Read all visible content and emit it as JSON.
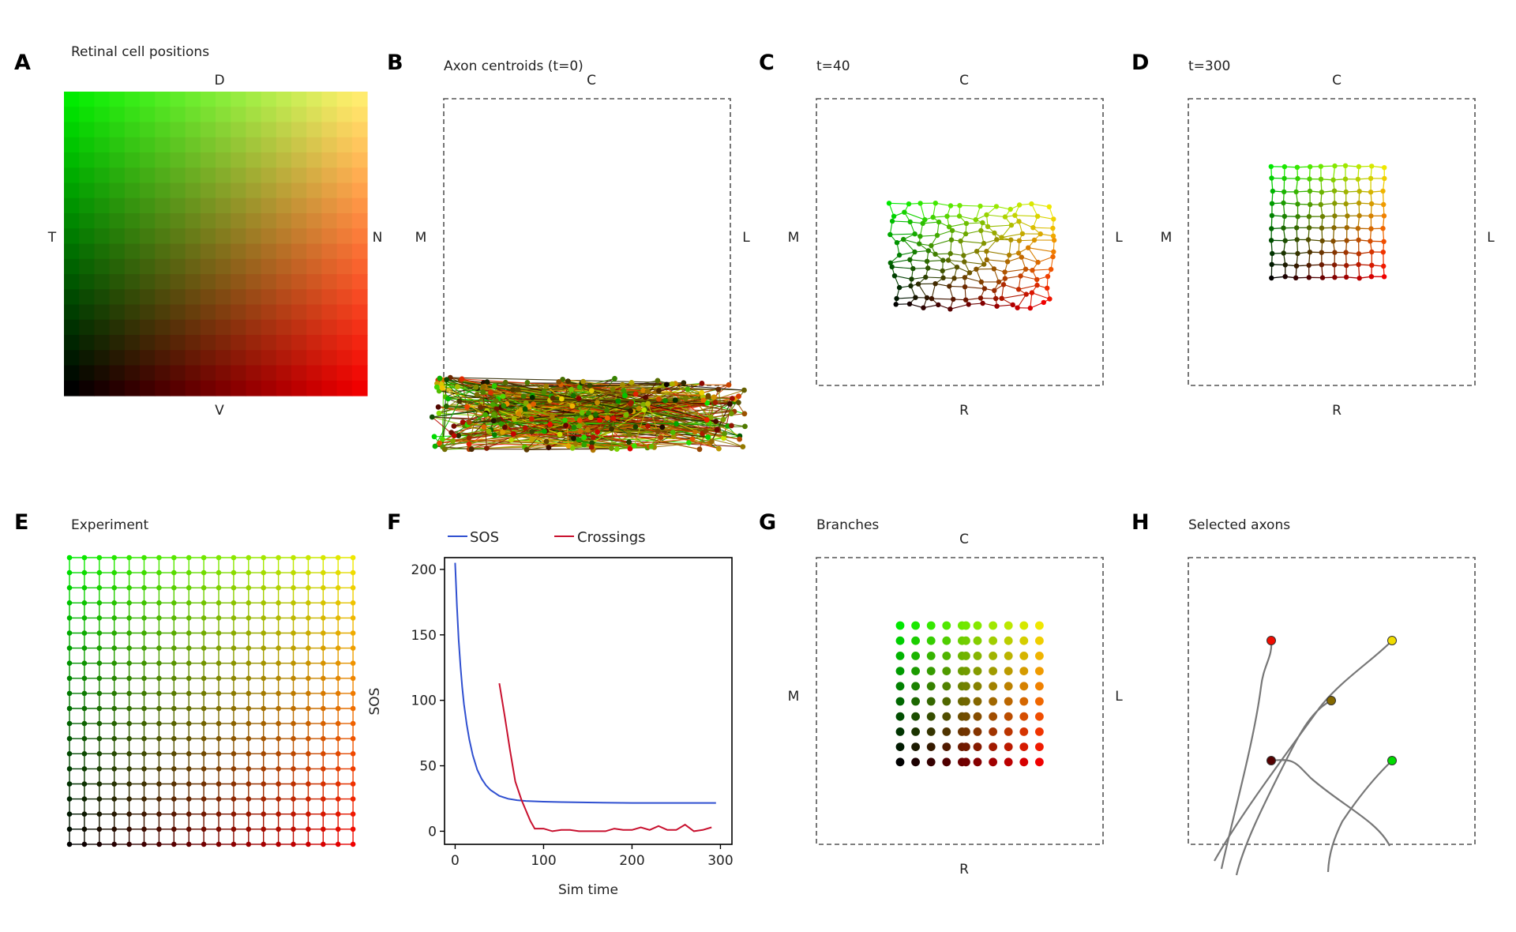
{
  "panels": [
    {
      "letter": "A",
      "title": "Retinal cell positions",
      "orient": {
        "top": "D",
        "bottom": "V",
        "left": "T",
        "right": "N"
      }
    },
    {
      "letter": "B",
      "title": "Axon centroids (t=0)",
      "orient": {
        "top": "C",
        "bottom": "",
        "left": "M",
        "right": "L"
      }
    },
    {
      "letter": "C",
      "title": "t=40",
      "orient": {
        "top": "C",
        "bottom": "R",
        "left": "M",
        "right": "L"
      }
    },
    {
      "letter": "D",
      "title": "t=300",
      "orient": {
        "top": "C",
        "bottom": "R",
        "left": "M",
        "right": "L"
      }
    },
    {
      "letter": "E",
      "title": "Experiment"
    },
    {
      "letter": "F",
      "title": ""
    },
    {
      "letter": "G",
      "title": "Branches",
      "orient": {
        "top": "C",
        "bottom": "R",
        "left": "M",
        "right": "L"
      }
    },
    {
      "letter": "H",
      "title": "Selected axons"
    }
  ],
  "colors": {
    "sos_line": "#2f4fd0",
    "crossings_line": "#c8102e",
    "axon_trace": "#777777",
    "box_dash": "#555555"
  },
  "chart_data": {
    "type": "line",
    "title": "",
    "xlabel": "Sim time",
    "ylabel": "SOS",
    "xlim": [
      -12,
      313
    ],
    "ylim": [
      -10,
      209
    ],
    "xticks": [
      0,
      100,
      200,
      300
    ],
    "yticks": [
      0,
      50,
      100,
      150,
      200
    ],
    "legend": "top",
    "series": [
      {
        "name": "SOS",
        "color": "#2f4fd0",
        "x": [
          0,
          2,
          4,
          6,
          8,
          10,
          13,
          16,
          20,
          25,
          30,
          35,
          40,
          50,
          60,
          70,
          80,
          100,
          120,
          150,
          200,
          250,
          295
        ],
        "y": [
          205,
          172,
          146,
          126,
          110,
          97,
          82,
          70,
          58,
          47,
          40,
          35,
          31.5,
          27,
          24.8,
          23.7,
          23.1,
          22.6,
          22.3,
          22,
          21.6,
          21.6,
          21.6
        ]
      },
      {
        "name": "Crossings",
        "color": "#c8102e",
        "x": [
          50,
          56,
          62,
          68,
          75,
          80,
          85,
          90,
          100,
          110,
          120,
          130,
          140,
          150,
          160,
          170,
          180,
          190,
          200,
          210,
          220,
          230,
          240,
          250,
          260,
          270,
          280,
          290
        ],
        "y": [
          113,
          88,
          62,
          38,
          24,
          16,
          8,
          2,
          2,
          0,
          1,
          1,
          0,
          0,
          0,
          0,
          2,
          1,
          1,
          3,
          1,
          4,
          1,
          1,
          5,
          0,
          1,
          3
        ]
      }
    ]
  }
}
